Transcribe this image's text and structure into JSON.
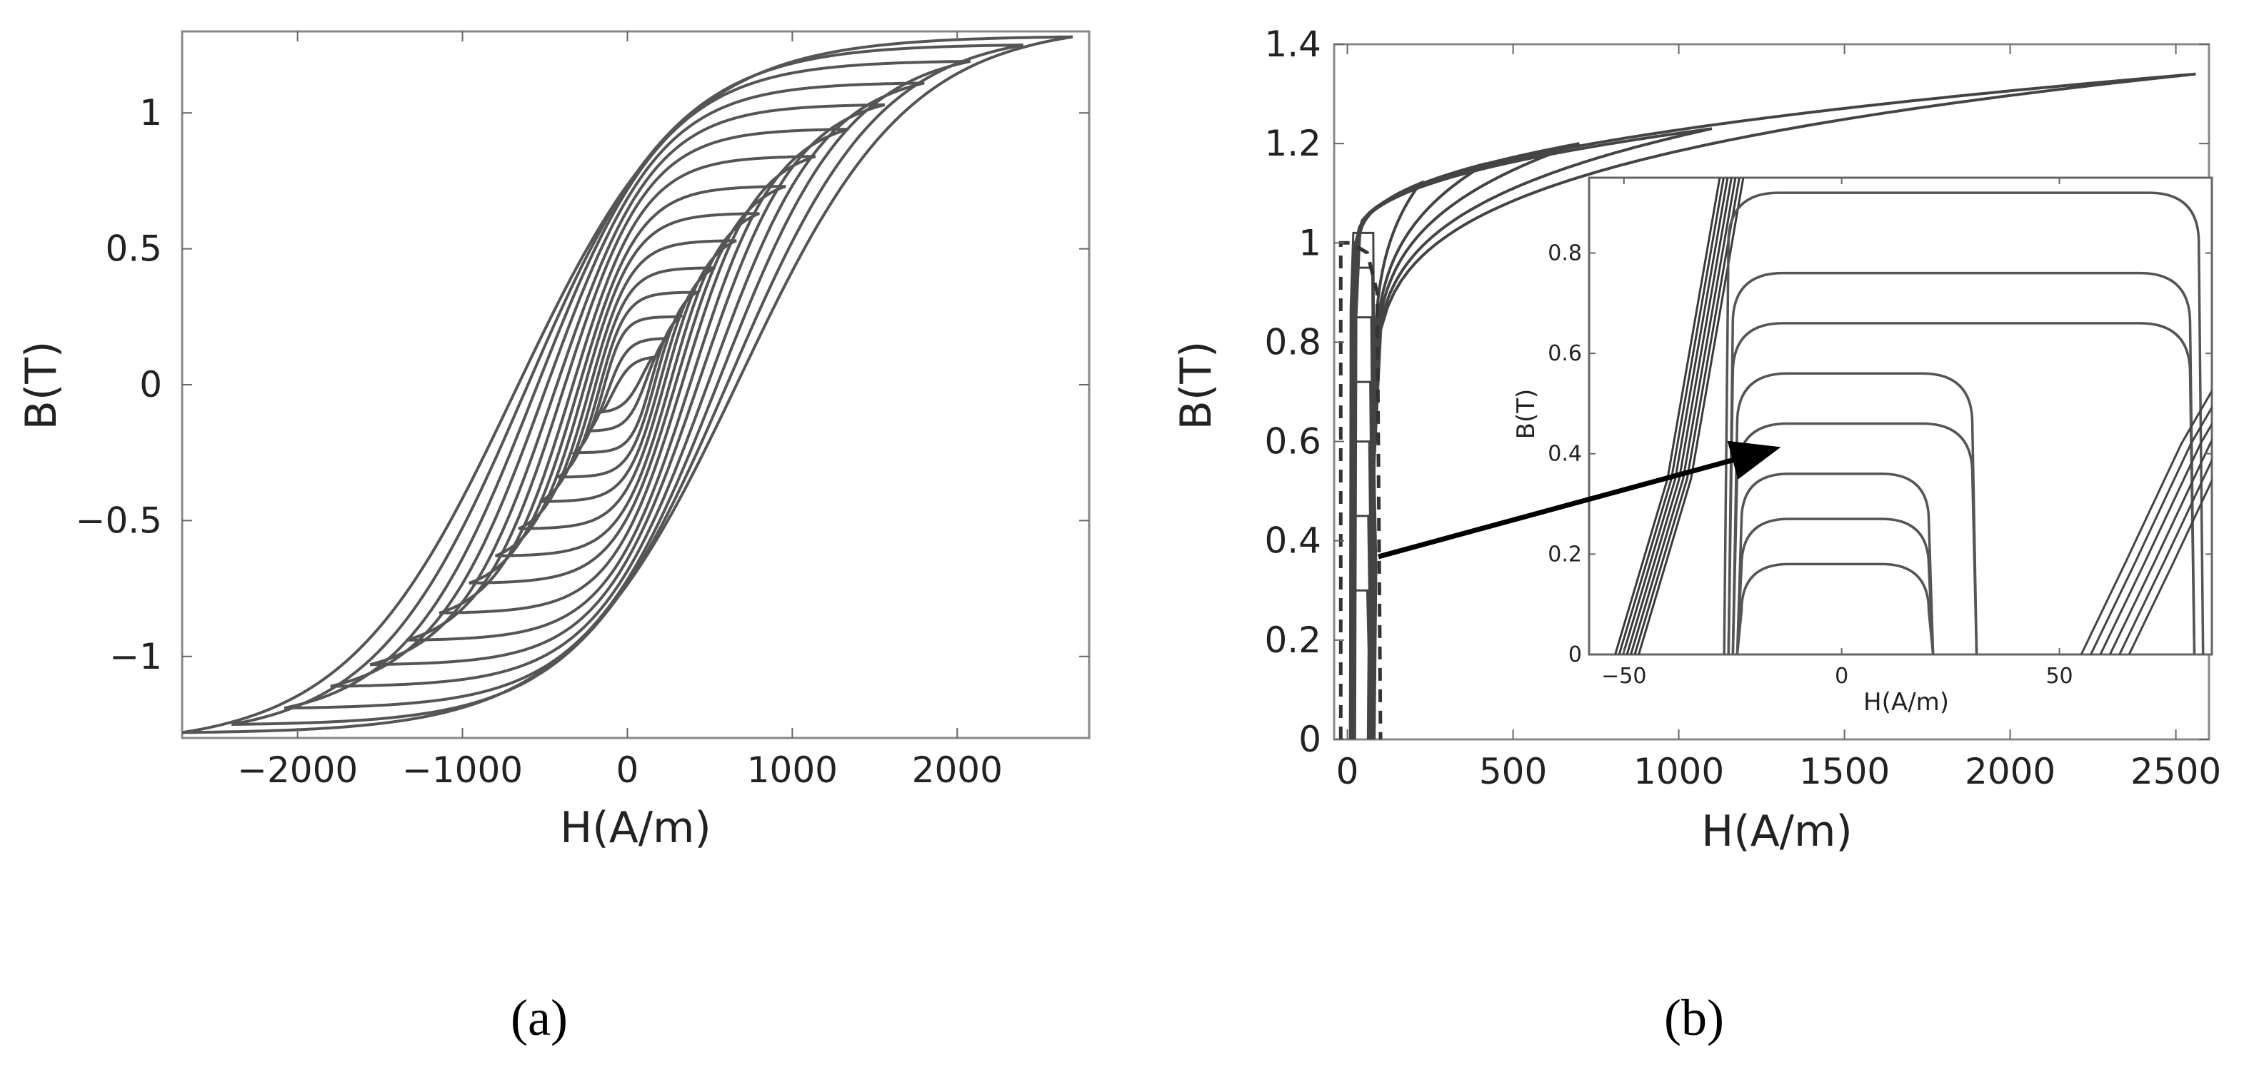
{
  "captions": {
    "a": "(a)",
    "b": "(b)"
  },
  "chart_data": [
    {
      "id": "a",
      "type": "line",
      "xlabel": "H(A/m)",
      "ylabel": "B(T)",
      "xlim": [
        -2700,
        2800
      ],
      "ylim": [
        -1.3,
        1.3
      ],
      "xticks": [
        -2000,
        -1000,
        0,
        1000,
        2000
      ],
      "xtick_labels": [
        "−2000",
        "−1000",
        "0",
        "1000",
        "2000"
      ],
      "yticks": [
        -1,
        -0.5,
        0,
        0.5,
        1
      ],
      "ytick_labels": [
        "−1",
        "−0.5",
        "0",
        "0.5",
        "1"
      ],
      "grid": false,
      "line_color": "#555555",
      "loops": [
        {
          "hmax": 150,
          "bmax": 0.1,
          "hc": 95
        },
        {
          "hmax": 230,
          "bmax": 0.17,
          "hc": 120
        },
        {
          "hmax": 320,
          "bmax": 0.25,
          "hc": 145
        },
        {
          "hmax": 420,
          "bmax": 0.34,
          "hc": 170
        },
        {
          "hmax": 530,
          "bmax": 0.43,
          "hc": 200
        },
        {
          "hmax": 660,
          "bmax": 0.53,
          "hc": 230
        },
        {
          "hmax": 800,
          "bmax": 0.63,
          "hc": 265
        },
        {
          "hmax": 960,
          "bmax": 0.73,
          "hc": 300
        },
        {
          "hmax": 1140,
          "bmax": 0.84,
          "hc": 340
        },
        {
          "hmax": 1340,
          "bmax": 0.94,
          "hc": 390
        },
        {
          "hmax": 1560,
          "bmax": 1.03,
          "hc": 440
        },
        {
          "hmax": 1800,
          "bmax": 1.11,
          "hc": 500
        },
        {
          "hmax": 2080,
          "bmax": 1.19,
          "hc": 560
        },
        {
          "hmax": 2400,
          "bmax": 1.25,
          "hc": 620
        },
        {
          "hmax": 2700,
          "bmax": 1.28,
          "hc": 680
        }
      ]
    },
    {
      "id": "b",
      "type": "line",
      "xlabel": "H(A/m)",
      "ylabel": "B(T)",
      "xlim": [
        -40,
        2600
      ],
      "ylim": [
        0,
        1.4
      ],
      "xticks": [
        0,
        500,
        1000,
        1500,
        2000,
        2500
      ],
      "xtick_labels": [
        "0",
        "500",
        "1000",
        "1500",
        "2000",
        "2500"
      ],
      "yticks": [
        0,
        0.2,
        0.4,
        0.6,
        0.8,
        1,
        1.2,
        1.4
      ],
      "ytick_labels": [
        "0",
        "0.2",
        "0.4",
        "0.6",
        "0.8",
        "1",
        "1.2",
        "1.4"
      ],
      "grid": false,
      "line_color": "#444444",
      "curves": [
        {
          "hmax": 2560,
          "bmax": 1.34
        },
        {
          "hmax": 1100,
          "bmax": 1.23
        },
        {
          "hmax": 700,
          "bmax": 1.2
        },
        {
          "hmax": 420,
          "bmax": 1.16
        },
        {
          "hmax": 220,
          "bmax": 1.12
        }
      ],
      "inset": {
        "xlabel": "H(A/m)",
        "ylabel": "B(T)",
        "xlim": [
          -58,
          85
        ],
        "ylim": [
          0,
          0.95
        ],
        "xticks": [
          -50,
          0,
          50
        ],
        "xtick_labels": [
          "−50",
          "0",
          "50"
        ],
        "yticks": [
          0,
          0.2,
          0.4,
          0.6,
          0.8
        ],
        "ytick_labels": [
          "0",
          "0.2",
          "0.4",
          "0.6",
          "0.8"
        ],
        "loops": [
          {
            "bmax": 0.18,
            "left": -23,
            "right": 20
          },
          {
            "bmax": 0.27,
            "left": -23,
            "right": 20
          },
          {
            "bmax": 0.36,
            "left": -23,
            "right": 20
          },
          {
            "bmax": 0.46,
            "left": -24,
            "right": 30
          },
          {
            "bmax": 0.56,
            "left": -24,
            "right": 30
          },
          {
            "bmax": 0.66,
            "left": -25,
            "right": 80
          },
          {
            "bmax": 0.76,
            "left": -25,
            "right": 80
          },
          {
            "bmax": 0.92,
            "left": -26,
            "right": 82
          }
        ]
      }
    }
  ]
}
